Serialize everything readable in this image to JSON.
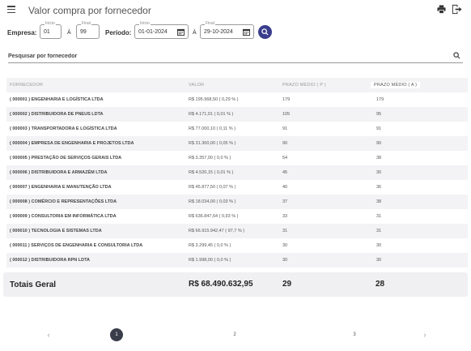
{
  "header": {
    "title": "Valor compra por fornecedor"
  },
  "filters": {
    "empresa_label": "Empresa:",
    "inicio_legend": "Início",
    "empresa_inicio": "01",
    "a_sep": "À",
    "final_legend": "Final",
    "empresa_final": "99",
    "periodo_label": "Período:",
    "periodo_inicio": "01-01-2024",
    "periodo_final": "29-10-2024"
  },
  "search": {
    "placeholder": "Pesquisar por fornecedor"
  },
  "table": {
    "headers": [
      "FORNECEDOR",
      "VALOR",
      "PRAZO MÉDIO ( P )",
      "PRAZO MÉDIO ( A )"
    ],
    "rows": [
      {
        "fornecedor": "( 000001 ) ENGENHARIA E LOGÍSTICA LTDA",
        "valor": "R$ 195.968,50  ( 0,29 % )",
        "prazo_p": "179",
        "prazo_a": "179"
      },
      {
        "fornecedor": "( 000002 ) DISTRIBUIDORA DE PNEUS LDTA",
        "valor": "R$ 4.171,01  ( 0,01 % )",
        "prazo_p": "105",
        "prazo_a": "95"
      },
      {
        "fornecedor": "( 000003 ) TRANSPORTADORA E LOGÍSTICA LTDA",
        "valor": "R$ 77.000,10  ( 0,11 % )",
        "prazo_p": "91",
        "prazo_a": "91"
      },
      {
        "fornecedor": "( 000004 ) EMPRESA DE ENGENHARIA E PROJETOS LTDA",
        "valor": "R$ 31.300,00  ( 0,05 % )",
        "prazo_p": "90",
        "prazo_a": "90"
      },
      {
        "fornecedor": "( 000005 ) PRESTAÇÃO DE SERVIÇOS GERAIS LTDA",
        "valor": "R$ 3.357,00  ( 0,0 % )",
        "prazo_p": "54",
        "prazo_a": "38"
      },
      {
        "fornecedor": "( 000006 ) DISTRIBUIDORA E ARMAZÉM LTDA",
        "valor": "R$ 4.520,15  ( 0,01 % )",
        "prazo_p": "45",
        "prazo_a": "30"
      },
      {
        "fornecedor": "( 000007 ) ENGENHARIA E MANUTENÇÃO LTDA",
        "valor": "R$ 45.877,50  ( 0,07 % )",
        "prazo_p": "40",
        "prazo_a": "36"
      },
      {
        "fornecedor": "( 000008 ) COMÉRCIO E REPRESENTAÇÕES LTDA",
        "valor": "R$ 18.034,00  ( 0,03 % )",
        "prazo_p": "37",
        "prazo_a": "38"
      },
      {
        "fornecedor": "( 000009 ) CONSULTORIA EM INFORMÁTICA LTDA",
        "valor": "R$ 636.847,64  ( 0,93 % )",
        "prazo_p": "33",
        "prazo_a": "31"
      },
      {
        "fornecedor": "( 000010 ) TECNOLOGIA E SISTEMAS LTDA",
        "valor": "R$ 66.915.942,47  ( 97,7 % )",
        "prazo_p": "31",
        "prazo_a": "31"
      },
      {
        "fornecedor": "( 000011 ) SERVIÇOS DE ENGENHARIA E CONSULTORIA LTDA",
        "valor": "R$ 3.299,45  ( 0,0 % )",
        "prazo_p": "30",
        "prazo_a": "30"
      },
      {
        "fornecedor": "( 000012 ) DISTRIBUIDORA RPN LDTA",
        "valor": "R$ 1.998,00  ( 0,0 % )",
        "prazo_p": "30",
        "prazo_a": "30"
      }
    ]
  },
  "totals": {
    "label": "Totais Geral",
    "valor": "R$ 68.490.632,95",
    "prazo_p": "29",
    "prazo_a": "28"
  },
  "pagination": {
    "prev": "‹",
    "pages": [
      "1",
      "2",
      "3"
    ],
    "current": "1",
    "next": "›"
  },
  "colors": {
    "accent": "#3a3d8c",
    "active_page": "#3a3d4a",
    "row_alt": "#f3f3f5"
  },
  "icons": [
    "menu-icon",
    "print-icon",
    "exit-icon",
    "calendar-icon",
    "search-icon"
  ]
}
